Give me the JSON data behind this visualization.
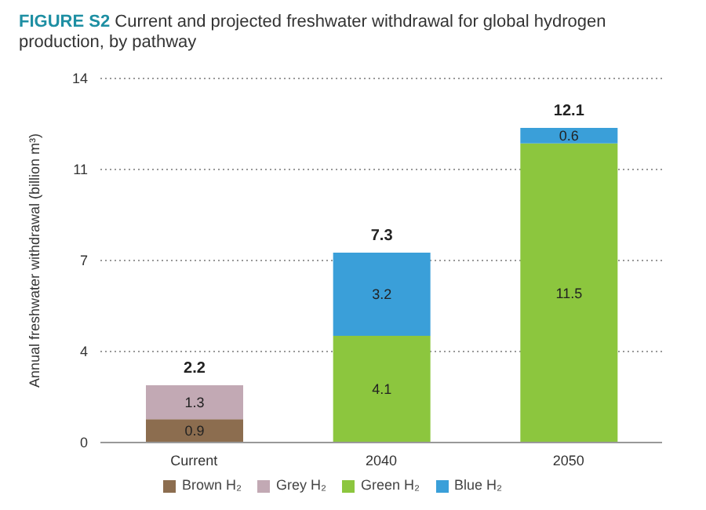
{
  "chart_data": {
    "type": "bar",
    "stacked": true,
    "title": "FIGURE S2 Current and projected freshwater withdrawal for global hydrogen production, by pathway",
    "ylabel": "Annual freshwater withdrawal (billion m³)",
    "categories": [
      "Current",
      "2040",
      "2050"
    ],
    "series": [
      {
        "name": "Brown H₂",
        "color": "#8c6d4f",
        "values": [
          0.9,
          null,
          null
        ]
      },
      {
        "name": "Grey H₂",
        "color": "#c2a9b4",
        "values": [
          1.3,
          null,
          null
        ]
      },
      {
        "name": "Green H₂",
        "color": "#8cc63e",
        "values": [
          null,
          4.1,
          11.5
        ]
      },
      {
        "name": "Blue H₂",
        "color": "#3a9fd9",
        "values": [
          null,
          3.2,
          0.6
        ]
      }
    ],
    "ylim": [
      0,
      14
    ],
    "yticks": [
      0,
      {
        "value": 3.5,
        "label": "4"
      },
      7,
      {
        "value": 10.5,
        "label": "11"
      },
      14
    ],
    "grid": "y",
    "legend": "bottom",
    "data_labels": true,
    "totals": [
      "2.2",
      "7.3",
      "12.1"
    ]
  }
}
